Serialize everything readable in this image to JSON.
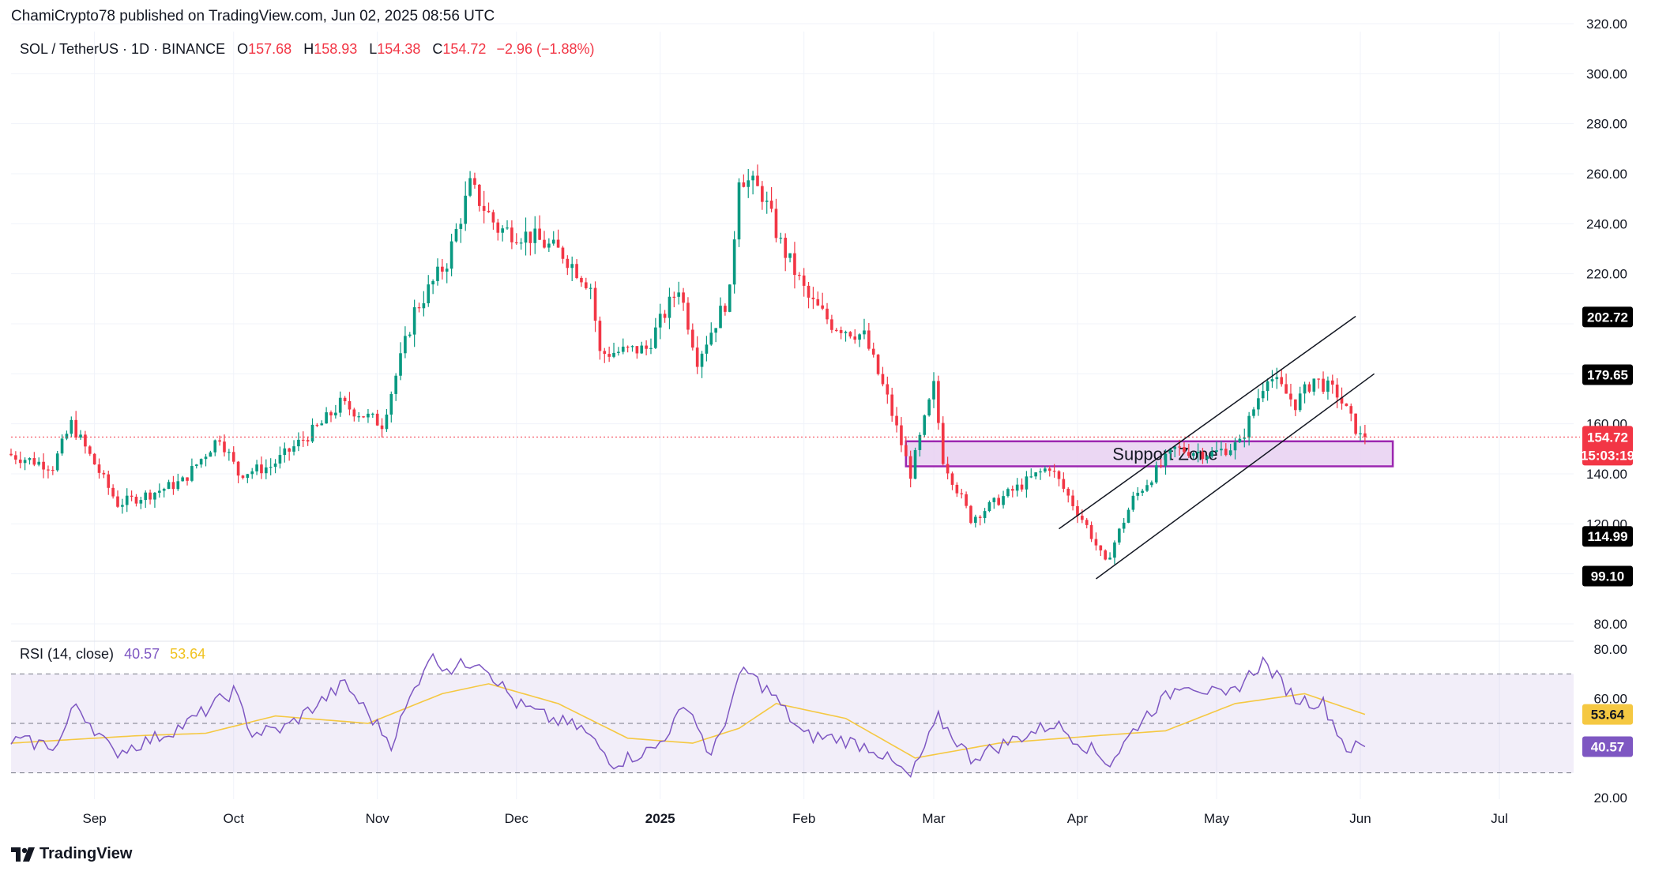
{
  "header": {
    "text": "ChamiCrypto78 published on TradingView.com, Jun 02, 2025 08:56 UTC"
  },
  "symbol": {
    "title": "SOL / TetherUS · 1D · BINANCE",
    "open_label": "O",
    "open": "157.68",
    "high_label": "H",
    "high": "158.93",
    "low_label": "L",
    "low": "154.38",
    "close_label": "C",
    "close": "154.72",
    "change": "−2.96 (−1.88%)"
  },
  "rsi_legend": {
    "title": "RSI (14, close)",
    "rsi_value": "40.57",
    "ma_value": "53.64"
  },
  "footer": {
    "brand": "TradingView"
  },
  "colors": {
    "up": "#089981",
    "down": "#f23645",
    "rsi_line": "#7e57c2",
    "rsi_ma": "#f5c842",
    "support_fill": "#e9d3f2",
    "support_border": "#9c27b0"
  },
  "chart_data": [
    {
      "type": "candlestick",
      "title": "SOL / TetherUS · 1D · BINANCE",
      "x_ticks": [
        "Sep",
        "Oct",
        "Nov",
        "Dec",
        "2025",
        "Feb",
        "Mar",
        "Apr",
        "May",
        "Jun",
        "Jul"
      ],
      "y_ticks": [
        "320.00",
        "300.00",
        "280.00",
        "260.00",
        "240.00",
        "220.00",
        "160.00",
        "140.00",
        "120.00",
        "80.00"
      ],
      "ylim": [
        80,
        320
      ],
      "xlim": [
        "2024-08-14",
        "2025-07-17"
      ],
      "price_badges": [
        {
          "value": "202.72",
          "color": "#000000"
        },
        {
          "value": "179.65",
          "color": "#000000"
        },
        {
          "value": "114.99",
          "color": "#000000"
        },
        {
          "value": "99.10",
          "color": "#000000"
        }
      ],
      "last_price": {
        "value": "154.72",
        "countdown": "15:03:19"
      },
      "support_zone": {
        "label": "Support Zone",
        "low": 143,
        "high": 153,
        "from": "2025-02-23",
        "to": "2025-06-08"
      },
      "channel": [
        {
          "from": [
            "2025-03-28",
            118
          ],
          "to": [
            "2025-05-31",
            203
          ]
        },
        {
          "from": [
            "2025-04-05",
            98
          ],
          "to": [
            "2025-06-04",
            180
          ]
        }
      ],
      "anchors": [
        [
          "2024-08-14",
          148
        ],
        [
          "2024-08-24",
          143
        ],
        [
          "2024-08-28",
          160
        ],
        [
          "2024-09-07",
          128
        ],
        [
          "2024-09-14",
          132
        ],
        [
          "2024-09-21",
          137
        ],
        [
          "2024-09-29",
          155
        ],
        [
          "2024-10-03",
          140
        ],
        [
          "2024-10-10",
          143
        ],
        [
          "2024-10-21",
          160
        ],
        [
          "2024-10-25",
          168
        ],
        [
          "2024-11-03",
          160
        ],
        [
          "2024-11-10",
          205
        ],
        [
          "2024-11-17",
          225
        ],
        [
          "2024-11-22",
          255
        ],
        [
          "2024-11-28",
          238
        ],
        [
          "2024-12-05",
          235
        ],
        [
          "2024-12-12",
          228
        ],
        [
          "2024-12-18",
          215
        ],
        [
          "2024-12-20",
          188
        ],
        [
          "2024-12-30",
          190
        ],
        [
          "2025-01-06",
          215
        ],
        [
          "2025-01-10",
          186
        ],
        [
          "2025-01-17",
          212
        ],
        [
          "2025-01-19",
          260
        ],
        [
          "2025-01-24",
          252
        ],
        [
          "2025-01-28",
          232
        ],
        [
          "2025-02-03",
          210
        ],
        [
          "2025-02-08",
          200
        ],
        [
          "2025-02-15",
          195
        ],
        [
          "2025-02-20",
          170
        ],
        [
          "2025-02-25",
          140
        ],
        [
          "2025-03-02",
          175
        ],
        [
          "2025-03-04",
          146
        ],
        [
          "2025-03-10",
          122
        ],
        [
          "2025-03-18",
          132
        ],
        [
          "2025-03-27",
          143
        ],
        [
          "2025-04-04",
          119
        ],
        [
          "2025-04-08",
          104
        ],
        [
          "2025-04-14",
          130
        ],
        [
          "2025-04-23",
          150
        ],
        [
          "2025-05-01",
          148
        ],
        [
          "2025-05-07",
          152
        ],
        [
          "2025-05-13",
          180
        ],
        [
          "2025-05-19",
          168
        ],
        [
          "2025-05-23",
          178
        ],
        [
          "2025-05-28",
          172
        ],
        [
          "2025-06-02",
          154.72
        ]
      ],
      "rsi": {
        "title": "RSI (14, close)",
        "ylim": [
          20,
          80
        ],
        "y_ticks": [
          "80.00",
          "60.00",
          "20.00"
        ],
        "bands": [
          30,
          50,
          70
        ],
        "value_badges": [
          "53.64",
          "40.57"
        ],
        "rsi_series": [
          [
            "2024-08-14",
            43
          ],
          [
            "2024-08-24",
            41
          ],
          [
            "2024-08-28",
            58
          ],
          [
            "2024-09-05",
            38
          ],
          [
            "2024-09-14",
            44
          ],
          [
            "2024-09-21",
            50
          ],
          [
            "2024-10-01",
            63
          ],
          [
            "2024-10-05",
            46
          ],
          [
            "2024-10-12",
            48
          ],
          [
            "2024-10-25",
            66
          ],
          [
            "2024-11-04",
            42
          ],
          [
            "2024-11-12",
            77
          ],
          [
            "2024-11-17",
            72
          ],
          [
            "2024-11-23",
            76
          ],
          [
            "2024-12-01",
            58
          ],
          [
            "2024-12-08",
            52
          ],
          [
            "2024-12-15",
            48
          ],
          [
            "2024-12-22",
            34
          ],
          [
            "2024-12-31",
            40
          ],
          [
            "2025-01-07",
            58
          ],
          [
            "2025-01-12",
            36
          ],
          [
            "2025-01-19",
            72
          ],
          [
            "2025-01-25",
            62
          ],
          [
            "2025-02-01",
            45
          ],
          [
            "2025-02-08",
            44
          ],
          [
            "2025-02-16",
            40
          ],
          [
            "2025-02-24",
            28
          ],
          [
            "2025-03-02",
            52
          ],
          [
            "2025-03-09",
            36
          ],
          [
            "2025-03-19",
            44
          ],
          [
            "2025-03-27",
            50
          ],
          [
            "2025-04-08",
            34
          ],
          [
            "2025-04-15",
            52
          ],
          [
            "2025-04-24",
            67
          ],
          [
            "2025-05-03",
            60
          ],
          [
            "2025-05-11",
            75
          ],
          [
            "2025-05-18",
            60
          ],
          [
            "2025-05-24",
            58
          ],
          [
            "2025-05-29",
            40
          ],
          [
            "2025-06-02",
            40.57
          ]
        ],
        "ma_series": [
          [
            "2024-08-14",
            42
          ],
          [
            "2024-09-10",
            45
          ],
          [
            "2024-09-25",
            46
          ],
          [
            "2024-10-10",
            53
          ],
          [
            "2024-10-30",
            50
          ],
          [
            "2024-11-15",
            62
          ],
          [
            "2024-11-25",
            66
          ],
          [
            "2024-12-10",
            58
          ],
          [
            "2024-12-25",
            44
          ],
          [
            "2025-01-08",
            42
          ],
          [
            "2025-01-18",
            48
          ],
          [
            "2025-01-26",
            58
          ],
          [
            "2025-02-10",
            52
          ],
          [
            "2025-02-25",
            36
          ],
          [
            "2025-03-15",
            42
          ],
          [
            "2025-04-05",
            45
          ],
          [
            "2025-04-20",
            47
          ],
          [
            "2025-05-05",
            58
          ],
          [
            "2025-05-20",
            62
          ],
          [
            "2025-06-02",
            53.64
          ]
        ]
      }
    }
  ]
}
